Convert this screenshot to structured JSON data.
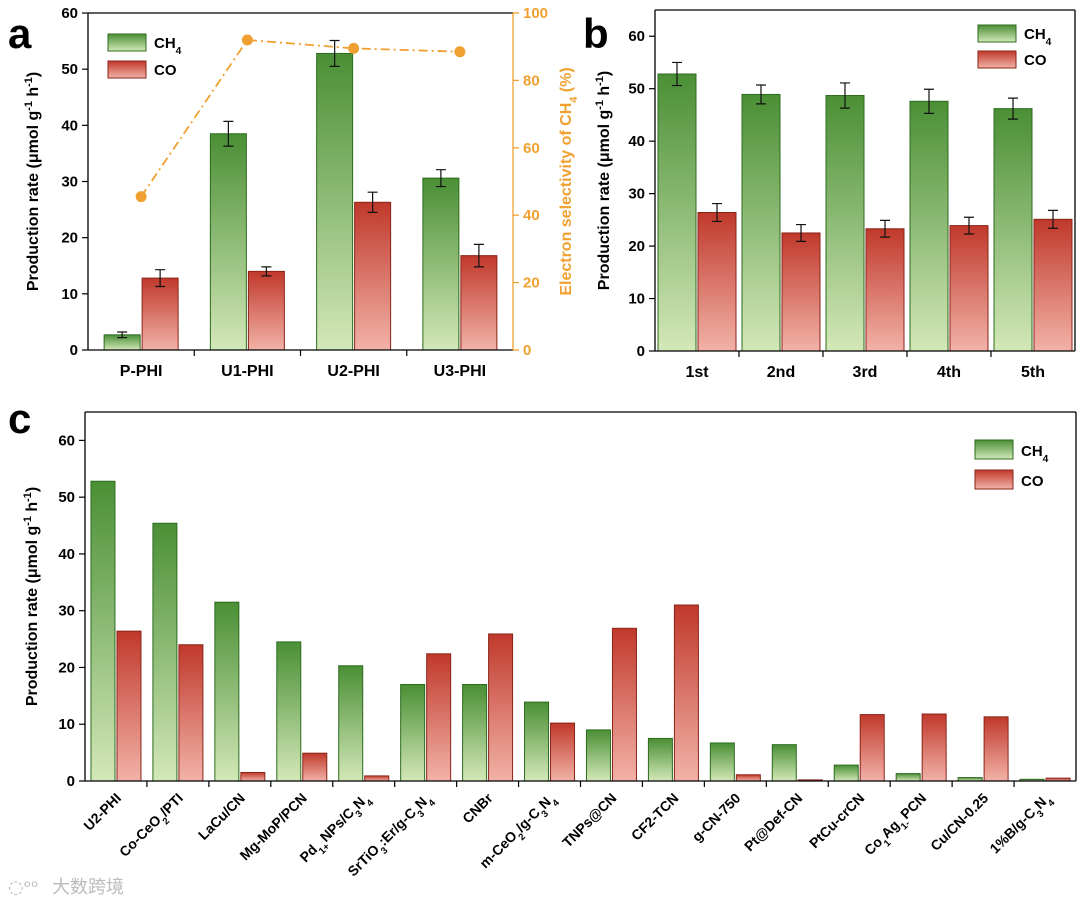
{
  "colors": {
    "ch4_light": "#d3e8b8",
    "ch4_dark": "#4a8f35",
    "co_light": "#f2b2a8",
    "co_dark": "#c0392b",
    "selectivity": "#f0a030"
  },
  "watermark": "大数跨境",
  "chart_data": [
    {
      "panel": "a",
      "type": "bar",
      "categories": [
        "P-PHI",
        "U1-PHI",
        "U2-PHI",
        "U3-PHI"
      ],
      "ylabel": "Production rate (μmol g⁻¹ h⁻¹)",
      "ylim": [
        0,
        60
      ],
      "yticks": [
        0,
        10,
        20,
        30,
        40,
        50,
        60
      ],
      "y2label": "Electron selectivity of CH₄ (%)",
      "y2lim": [
        0,
        100
      ],
      "y2ticks": [
        0,
        20,
        40,
        60,
        80,
        100
      ],
      "legend": [
        "CH₄",
        "CO"
      ],
      "legend_position": "top-left",
      "series": [
        {
          "name": "CH₄",
          "values": [
            2.7,
            38.5,
            52.8,
            30.6
          ],
          "errors": [
            0.5,
            2.2,
            2.3,
            1.5
          ]
        },
        {
          "name": "CO",
          "values": [
            12.8,
            14.0,
            26.3,
            16.8
          ],
          "errors": [
            1.5,
            0.8,
            1.8,
            2.0
          ]
        }
      ],
      "line_series": {
        "name": "Electron selectivity of CH₄",
        "values": [
          45.5,
          92.0,
          89.5,
          88.5
        ]
      }
    },
    {
      "panel": "b",
      "type": "bar",
      "categories": [
        "1st",
        "2nd",
        "3rd",
        "4th",
        "5th"
      ],
      "ylabel": "Production rate (μmol g⁻¹ h⁻¹)",
      "ylim": [
        0,
        65
      ],
      "yticks": [
        0,
        10,
        20,
        30,
        40,
        50,
        60
      ],
      "legend": [
        "CH₄",
        "CO"
      ],
      "legend_position": "top-right",
      "series": [
        {
          "name": "CH₄",
          "values": [
            52.8,
            48.9,
            48.7,
            47.6,
            46.2
          ],
          "errors": [
            2.2,
            1.8,
            2.4,
            2.3,
            2.0
          ]
        },
        {
          "name": "CO",
          "values": [
            26.4,
            22.5,
            23.3,
            23.9,
            25.1
          ],
          "errors": [
            1.7,
            1.6,
            1.6,
            1.6,
            1.7
          ]
        }
      ]
    },
    {
      "panel": "c",
      "type": "bar",
      "categories": [
        "U2-PHI",
        "Co-CeO₂/PTI",
        "LaCu/CN",
        "Mg-MoP/PCN",
        "Pd₁₊NPs/C₃N₄",
        "SrTiO₃:Er/g-C₃N₄",
        "CNBr",
        "m-CeO₂/g-C₃N₄",
        "TNPs@CN",
        "CF2-TCN",
        "g-CN-750",
        "Pt@Def-CN",
        "PtCu-crCN",
        "Co₁Ag₁₋PCN",
        "Cu/CN-0.25",
        "1%B/g-C₃N₄"
      ],
      "ylabel": "Production rate (μmol g⁻¹ h⁻¹)",
      "ylim": [
        0,
        65
      ],
      "yticks": [
        0,
        10,
        20,
        30,
        40,
        50,
        60
      ],
      "legend": [
        "CH₄",
        "CO"
      ],
      "legend_position": "top-right",
      "series": [
        {
          "name": "CH₄",
          "values": [
            52.8,
            45.4,
            31.5,
            24.5,
            20.3,
            17.0,
            17.0,
            13.9,
            9.0,
            7.5,
            6.7,
            6.4,
            2.8,
            1.3,
            0.6,
            0.3
          ]
        },
        {
          "name": "CO",
          "values": [
            26.4,
            24.0,
            1.5,
            4.9,
            0.9,
            22.4,
            25.9,
            10.2,
            26.9,
            31.0,
            1.1,
            0.2,
            11.7,
            11.8,
            11.3,
            0.5
          ]
        }
      ]
    }
  ]
}
